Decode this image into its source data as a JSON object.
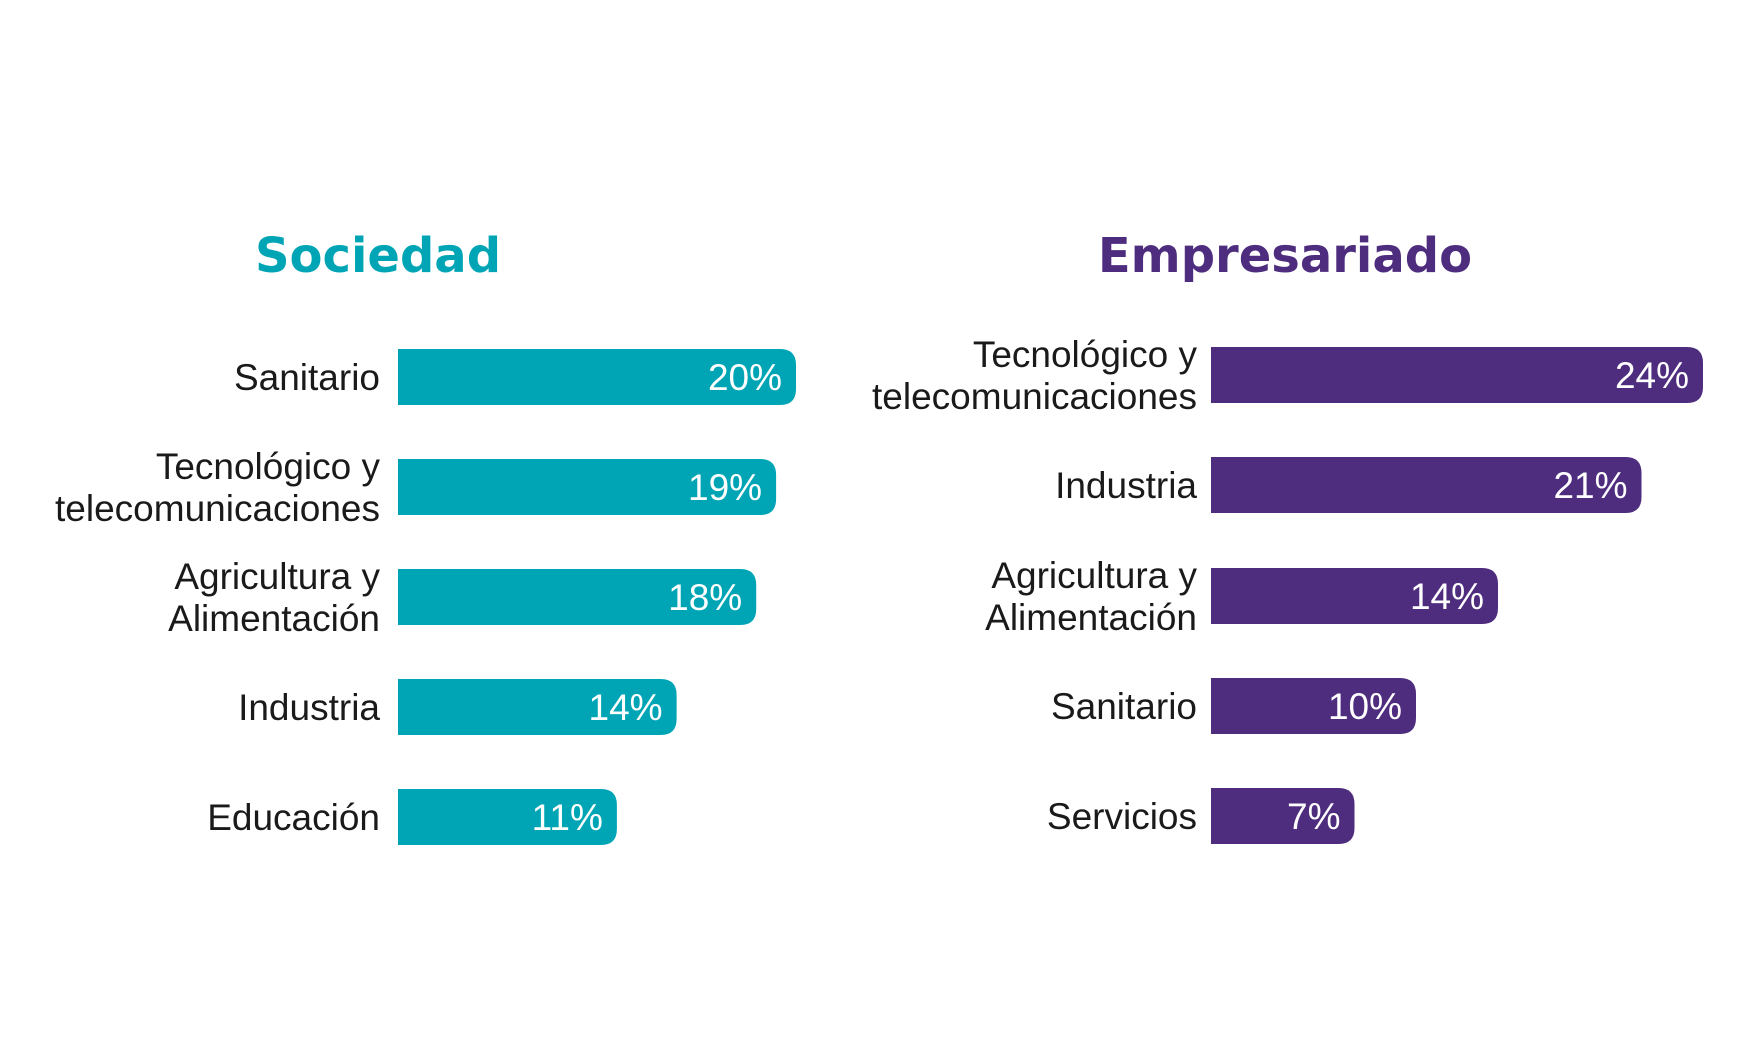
{
  "chart_data": [
    {
      "type": "bar",
      "orientation": "horizontal",
      "title": "Sociedad",
      "color": "#00a5b5",
      "categories": [
        "Sanitario",
        "Tecnológico y\ntelecomunicaciones",
        "Agricultura y\nAlimentación",
        "Industria",
        "Educación"
      ],
      "values": [
        20,
        19,
        18,
        14,
        11
      ],
      "value_labels": [
        "20%",
        "19%",
        "18%",
        "14%",
        "11%"
      ]
    },
    {
      "type": "bar",
      "orientation": "horizontal",
      "title": "Empresariado",
      "color": "#4e2d7f",
      "categories": [
        "Tecnológico y\ntelecomunicaciones",
        "Industria",
        "Agricultura y\nAlimentación",
        "Sanitario",
        "Servicios"
      ],
      "values": [
        24,
        21,
        14,
        10,
        7
      ],
      "value_labels": [
        "24%",
        "21%",
        "14%",
        "10%",
        "7%"
      ]
    }
  ]
}
